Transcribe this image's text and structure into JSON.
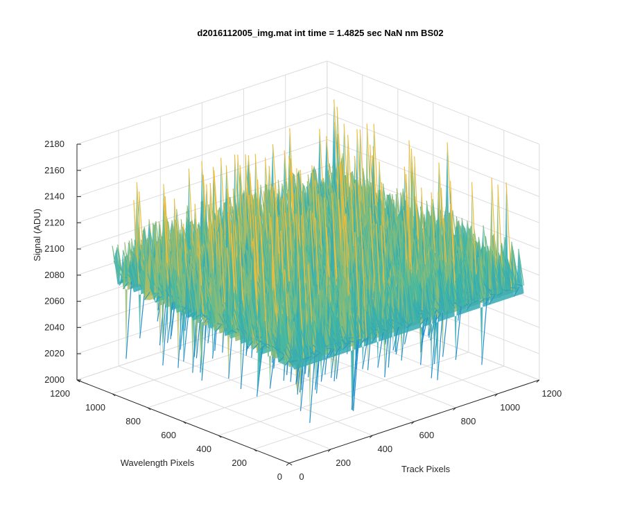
{
  "chart_data": {
    "type": "surface",
    "title": "d2016112005_img.mat int time = 1.4825 sec  NaN nm BS02",
    "xlabel": "Track Pixels",
    "ylabel": "Wavelength Pixels",
    "zlabel": "Signal (ADU)",
    "xlim": [
      0,
      1200
    ],
    "ylim": [
      0,
      1200
    ],
    "zlim": [
      2000,
      2180
    ],
    "x_data_range": [
      0,
      1100
    ],
    "y_data_range": [
      0,
      1000
    ],
    "x_ticks": [
      "0",
      "200",
      "400",
      "600",
      "800",
      "1000",
      "1200"
    ],
    "y_ticks": [
      "0",
      "200",
      "400",
      "600",
      "800",
      "1000",
      "1200"
    ],
    "z_ticks": [
      "2000",
      "2020",
      "2040",
      "2060",
      "2080",
      "2100",
      "2120",
      "2140",
      "2160",
      "2180"
    ],
    "grid": true,
    "colormap": "parula",
    "signal_mean": 2095,
    "signal_typical_range": [
      2060,
      2140
    ],
    "signal_spike_range": [
      2020,
      2170
    ]
  },
  "colors": {
    "grid": "#dcdcdc",
    "axis": "#262626",
    "low": "#1f8ecf",
    "mid": "#3fb9a4",
    "high": "#f0bd3a"
  }
}
